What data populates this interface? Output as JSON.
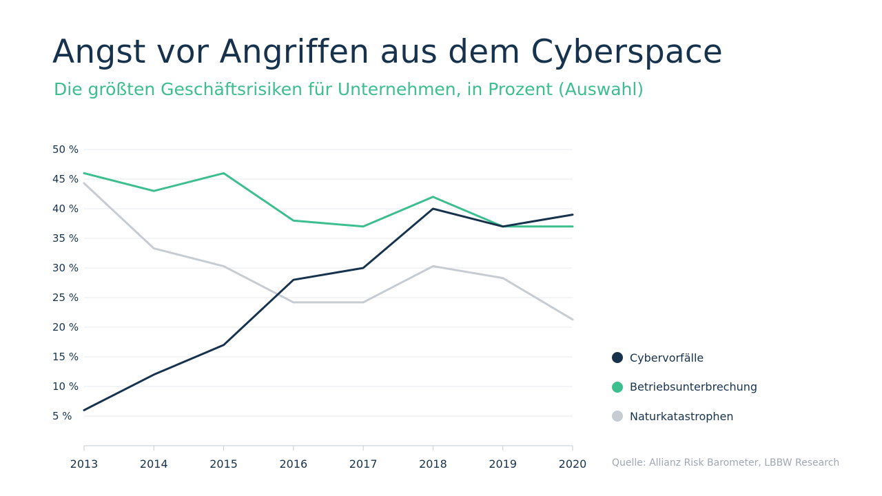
{
  "title": "Angst vor Angriffen aus dem Cyberspace",
  "subtitle": "Die größten Geschäftsrisiken für Unternehmen, in Prozent (Auswahl)",
  "source": "Quelle: Allianz Risk Barometer, LBBW Research",
  "chart_data": {
    "type": "line",
    "title": "Angst vor Angriffen aus dem Cyberspace",
    "subtitle": "Die größten Geschäftsrisiken für Unternehmen, in Prozent (Auswahl)",
    "xlabel": "",
    "ylabel": "",
    "x": [
      "2013",
      "2014",
      "2015",
      "2016",
      "2017",
      "2018",
      "2019",
      "2020"
    ],
    "ylim": [
      0,
      50
    ],
    "yticks": [
      {
        "value": 5,
        "label": "5 %"
      },
      {
        "value": 10,
        "label": "10 %"
      },
      {
        "value": 15,
        "label": "15 %"
      },
      {
        "value": 20,
        "label": "20 %"
      },
      {
        "value": 25,
        "label": "25 %"
      },
      {
        "value": 30,
        "label": "30 %"
      },
      {
        "value": 35,
        "label": "35 %"
      },
      {
        "value": 40,
        "label": "40 %"
      },
      {
        "value": 45,
        "label": "45 %"
      },
      {
        "value": 50,
        "label": "50 %"
      }
    ],
    "grid": true,
    "legend_position": "right",
    "series": [
      {
        "name": "Cybervorfälle",
        "color": "#17324d",
        "values": [
          6,
          12,
          17,
          28,
          30,
          40,
          37,
          39
        ]
      },
      {
        "name": "Betriebsunterbrechung",
        "color": "#3dbe8f",
        "values": [
          46,
          43,
          46,
          38,
          37,
          42,
          37,
          37
        ]
      },
      {
        "name": "Naturkatastrophen",
        "color": "#c7ccd3",
        "values": [
          44.3,
          33.3,
          30.3,
          24.2,
          24.2,
          30.3,
          28.3,
          21.3
        ]
      }
    ]
  }
}
